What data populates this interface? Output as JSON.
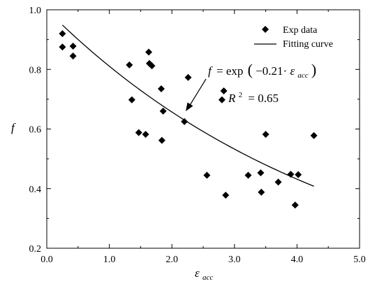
{
  "chart_data": {
    "type": "scatter",
    "xlim": [
      0,
      5
    ],
    "ylim": [
      0.2,
      1.0
    ],
    "x_ticks": [
      0,
      1,
      2,
      3,
      4,
      5
    ],
    "x_tick_labels": [
      "0.0",
      "1.0",
      "2.0",
      "3.0",
      "4.0",
      "5.0"
    ],
    "y_ticks": [
      0.2,
      0.4,
      0.6,
      0.8,
      1.0
    ],
    "y_tick_labels": [
      "0.2",
      "0.4",
      "0.6",
      "0.8",
      "1.0"
    ],
    "ylabel": "f",
    "xlabel_main": "ε",
    "xlabel_sub": "acc",
    "grid": false,
    "legend_position": "top-right",
    "legend": {
      "scatter_label": "Exp data",
      "line_label": "Fitting curve"
    },
    "annotation": {
      "f": "f",
      "eq": "= exp",
      "paren_open": "(",
      "coef": "−0.21·",
      "eps": "ε",
      "eps_sub": "acc",
      "paren_close": ")",
      "r_main": "R",
      "r_sup": "2",
      "r_value": "= 0.65"
    },
    "series": [
      {
        "name": "Exp data",
        "type": "scatter",
        "points": [
          [
            0.25,
            0.92
          ],
          [
            0.25,
            0.875
          ],
          [
            0.42,
            0.878
          ],
          [
            0.42,
            0.845
          ],
          [
            1.32,
            0.815
          ],
          [
            1.36,
            0.698
          ],
          [
            1.47,
            0.588
          ],
          [
            1.58,
            0.582
          ],
          [
            1.63,
            0.858
          ],
          [
            1.64,
            0.82
          ],
          [
            1.68,
            0.812
          ],
          [
            1.83,
            0.735
          ],
          [
            1.84,
            0.562
          ],
          [
            1.86,
            0.66
          ],
          [
            2.2,
            0.625
          ],
          [
            2.26,
            0.773
          ],
          [
            2.56,
            0.445
          ],
          [
            2.8,
            0.698
          ],
          [
            2.83,
            0.728
          ],
          [
            2.86,
            0.378
          ],
          [
            3.22,
            0.445
          ],
          [
            3.42,
            0.453
          ],
          [
            3.43,
            0.388
          ],
          [
            3.5,
            0.582
          ],
          [
            3.7,
            0.422
          ],
          [
            3.9,
            0.448
          ],
          [
            3.97,
            0.345
          ],
          [
            4.02,
            0.447
          ],
          [
            4.27,
            0.578
          ]
        ]
      },
      {
        "name": "Fitting curve",
        "type": "line",
        "function": "exp(-0.21*x)",
        "coefficient": -0.21,
        "x_range": [
          0.25,
          4.27
        ]
      }
    ]
  }
}
